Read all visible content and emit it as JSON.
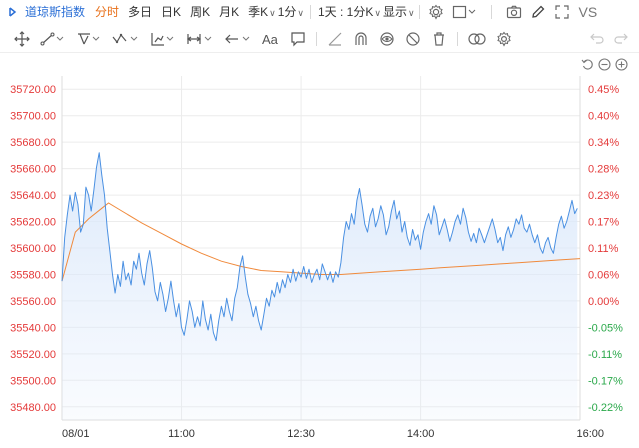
{
  "topbar": {
    "brand": "道琼斯指数",
    "tabs": [
      "分时",
      "多日",
      "日K",
      "周K",
      "月K",
      "季K"
    ],
    "active_tab": "分时",
    "interval": "1分",
    "range": "1天 : 1分K",
    "display": "显示",
    "vs": "VS"
  },
  "drawbar": {
    "text_tool": "Aa"
  },
  "colors": {
    "price_line": "#4a90e2",
    "price_fill": "#dce9fb",
    "avg_line": "#f08a3c",
    "up": "#e43a3a",
    "down": "#2aa84a",
    "grid": "#ececec",
    "active": "#e8701a"
  },
  "chart_data": {
    "type": "line",
    "title": "道琼斯指数",
    "x_ticks": [
      "08/01",
      "11:00",
      "12:30",
      "14:00",
      "16:00"
    ],
    "y_ticks_left": [
      "35720.00",
      "35700.00",
      "35680.00",
      "35660.00",
      "35640.00",
      "35620.00",
      "35600.00",
      "35580.00",
      "35560.00",
      "35540.00",
      "35520.00",
      "35500.00",
      "35480.00"
    ],
    "y_ticks_right": [
      "0.45%",
      "0.40%",
      "0.34%",
      "0.28%",
      "0.23%",
      "0.17%",
      "0.11%",
      "0.06%",
      "0.00%",
      "-0.05%",
      "-0.11%",
      "-0.17%",
      "-0.22%"
    ],
    "ylim": [
      35470,
      35730
    ],
    "prev_close": 35560,
    "x_range": [
      "09:30",
      "16:00"
    ],
    "series": [
      {
        "name": "price",
        "points": [
          [
            "09:30",
            35575
          ],
          [
            "09:32",
            35608
          ],
          [
            "09:34",
            35625
          ],
          [
            "09:36",
            35640
          ],
          [
            "09:38",
            35628
          ],
          [
            "09:40",
            35642
          ],
          [
            "09:42",
            35633
          ],
          [
            "09:44",
            35612
          ],
          [
            "09:46",
            35618
          ],
          [
            "09:48",
            35646
          ],
          [
            "09:50",
            35640
          ],
          [
            "09:52",
            35628
          ],
          [
            "09:54",
            35644
          ],
          [
            "09:56",
            35661
          ],
          [
            "09:58",
            35672
          ],
          [
            "10:00",
            35655
          ],
          [
            "10:02",
            35640
          ],
          [
            "10:04",
            35615
          ],
          [
            "10:06",
            35598
          ],
          [
            "10:08",
            35580
          ],
          [
            "10:10",
            35566
          ],
          [
            "10:12",
            35580
          ],
          [
            "10:14",
            35571
          ],
          [
            "10:16",
            35590
          ],
          [
            "10:18",
            35576
          ],
          [
            "10:20",
            35581
          ],
          [
            "10:22",
            35572
          ],
          [
            "10:24",
            35590
          ],
          [
            "10:26",
            35584
          ],
          [
            "10:28",
            35596
          ],
          [
            "10:30",
            35581
          ],
          [
            "10:32",
            35572
          ],
          [
            "10:34",
            35588
          ],
          [
            "10:36",
            35598
          ],
          [
            "10:38",
            35585
          ],
          [
            "10:40",
            35567
          ],
          [
            "10:42",
            35560
          ],
          [
            "10:44",
            35574
          ],
          [
            "10:46",
            35565
          ],
          [
            "10:48",
            35552
          ],
          [
            "10:50",
            35562
          ],
          [
            "10:52",
            35575
          ],
          [
            "10:54",
            35560
          ],
          [
            "10:56",
            35548
          ],
          [
            "10:58",
            35558
          ],
          [
            "11:00",
            35540
          ],
          [
            "11:02",
            35534
          ],
          [
            "11:04",
            35546
          ],
          [
            "11:06",
            35560
          ],
          [
            "11:08",
            35552
          ],
          [
            "11:10",
            35540
          ],
          [
            "11:12",
            35548
          ],
          [
            "11:14",
            35541
          ],
          [
            "11:16",
            35560
          ],
          [
            "11:18",
            35546
          ],
          [
            "11:20",
            35538
          ],
          [
            "11:22",
            35550
          ],
          [
            "11:24",
            35536
          ],
          [
            "11:26",
            35530
          ],
          [
            "11:28",
            35545
          ],
          [
            "11:30",
            35556
          ],
          [
            "11:32",
            35548
          ],
          [
            "11:34",
            35562
          ],
          [
            "11:36",
            35552
          ],
          [
            "11:38",
            35545
          ],
          [
            "11:40",
            35562
          ],
          [
            "11:42",
            35570
          ],
          [
            "11:44",
            35586
          ],
          [
            "11:46",
            35594
          ],
          [
            "11:48",
            35578
          ],
          [
            "11:50",
            35565
          ],
          [
            "11:52",
            35558
          ],
          [
            "11:54",
            35548
          ],
          [
            "11:56",
            35556
          ],
          [
            "11:58",
            35545
          ],
          [
            "12:00",
            35538
          ],
          [
            "12:02",
            35550
          ],
          [
            "12:04",
            35562
          ],
          [
            "12:06",
            35556
          ],
          [
            "12:08",
            35568
          ],
          [
            "12:10",
            35563
          ],
          [
            "12:12",
            35574
          ],
          [
            "12:14",
            35566
          ],
          [
            "12:16",
            35576
          ],
          [
            "12:18",
            35570
          ],
          [
            "12:20",
            35580
          ],
          [
            "12:22",
            35574
          ],
          [
            "12:24",
            35584
          ],
          [
            "12:26",
            35575
          ],
          [
            "12:28",
            35582
          ],
          [
            "12:30",
            35578
          ],
          [
            "12:32",
            35586
          ],
          [
            "12:34",
            35577
          ],
          [
            "12:36",
            35584
          ],
          [
            "12:38",
            35574
          ],
          [
            "12:40",
            35580
          ],
          [
            "12:42",
            35584
          ],
          [
            "12:44",
            35576
          ],
          [
            "12:46",
            35588
          ],
          [
            "12:48",
            35582
          ],
          [
            "12:50",
            35576
          ],
          [
            "12:52",
            35582
          ],
          [
            "12:54",
            35574
          ],
          [
            "12:56",
            35582
          ],
          [
            "12:58",
            35578
          ],
          [
            "13:00",
            35589
          ],
          [
            "13:02",
            35608
          ],
          [
            "13:04",
            35620
          ],
          [
            "13:06",
            35614
          ],
          [
            "13:08",
            35626
          ],
          [
            "13:10",
            35618
          ],
          [
            "13:12",
            35636
          ],
          [
            "13:14",
            35645
          ],
          [
            "13:16",
            35632
          ],
          [
            "13:18",
            35618
          ],
          [
            "13:20",
            35612
          ],
          [
            "13:22",
            35624
          ],
          [
            "13:24",
            35630
          ],
          [
            "13:26",
            35616
          ],
          [
            "13:28",
            35622
          ],
          [
            "13:30",
            35632
          ],
          [
            "13:32",
            35625
          ],
          [
            "13:34",
            35610
          ],
          [
            "13:36",
            35616
          ],
          [
            "13:38",
            35628
          ],
          [
            "13:40",
            35636
          ],
          [
            "13:42",
            35622
          ],
          [
            "13:44",
            35628
          ],
          [
            "13:46",
            35612
          ],
          [
            "13:48",
            35620
          ],
          [
            "13:50",
            35608
          ],
          [
            "13:52",
            35602
          ],
          [
            "13:54",
            35614
          ],
          [
            "13:56",
            35606
          ],
          [
            "13:58",
            35610
          ],
          [
            "14:00",
            35599
          ],
          [
            "14:02",
            35612
          ],
          [
            "14:04",
            35620
          ],
          [
            "14:06",
            35626
          ],
          [
            "14:08",
            35618
          ],
          [
            "14:10",
            35632
          ],
          [
            "14:12",
            35625
          ],
          [
            "14:14",
            35610
          ],
          [
            "14:16",
            35616
          ],
          [
            "14:18",
            35622
          ],
          [
            "14:20",
            35614
          ],
          [
            "14:22",
            35605
          ],
          [
            "14:24",
            35612
          ],
          [
            "14:26",
            35620
          ],
          [
            "14:28",
            35625
          ],
          [
            "14:30",
            35618
          ],
          [
            "14:32",
            35630
          ],
          [
            "14:34",
            35623
          ],
          [
            "14:36",
            35612
          ],
          [
            "14:38",
            35605
          ],
          [
            "14:40",
            35611
          ],
          [
            "14:42",
            35604
          ],
          [
            "14:44",
            35615
          ],
          [
            "14:46",
            35610
          ],
          [
            "14:48",
            35604
          ],
          [
            "14:50",
            35610
          ],
          [
            "14:52",
            35616
          ],
          [
            "14:54",
            35622
          ],
          [
            "14:56",
            35614
          ],
          [
            "14:58",
            35604
          ],
          [
            "15:00",
            35608
          ],
          [
            "15:02",
            35598
          ],
          [
            "15:04",
            35610
          ],
          [
            "15:06",
            35616
          ],
          [
            "15:08",
            35608
          ],
          [
            "15:10",
            35614
          ],
          [
            "15:12",
            35622
          ],
          [
            "15:14",
            35618
          ],
          [
            "15:16",
            35625
          ],
          [
            "15:18",
            35615
          ],
          [
            "15:20",
            35612
          ],
          [
            "15:22",
            35618
          ],
          [
            "15:24",
            35610
          ],
          [
            "15:26",
            35604
          ],
          [
            "15:28",
            35610
          ],
          [
            "15:30",
            35600
          ],
          [
            "15:32",
            35596
          ],
          [
            "15:34",
            35604
          ],
          [
            "15:36",
            35608
          ],
          [
            "15:38",
            35600
          ],
          [
            "15:40",
            35596
          ],
          [
            "15:42",
            35608
          ],
          [
            "15:44",
            35618
          ],
          [
            "15:46",
            35624
          ],
          [
            "15:48",
            35615
          ],
          [
            "15:50",
            35620
          ],
          [
            "15:52",
            35628
          ],
          [
            "15:54",
            35636
          ],
          [
            "15:56",
            35626
          ],
          [
            "15:58",
            35630
          ]
        ]
      },
      {
        "name": "average",
        "points": [
          [
            "09:30",
            35575
          ],
          [
            "09:40",
            35612
          ],
          [
            "09:50",
            35622
          ],
          [
            "10:00",
            35630
          ],
          [
            "10:05",
            35634
          ],
          [
            "10:15",
            35628
          ],
          [
            "10:30",
            35619
          ],
          [
            "10:45",
            35611
          ],
          [
            "11:00",
            35603
          ],
          [
            "11:15",
            35596
          ],
          [
            "11:30",
            35590
          ],
          [
            "11:45",
            35586
          ],
          [
            "12:00",
            35583
          ],
          [
            "12:15",
            35582
          ],
          [
            "12:30",
            35581
          ],
          [
            "12:45",
            35580
          ],
          [
            "13:00",
            35580
          ],
          [
            "13:15",
            35581
          ],
          [
            "13:30",
            35582
          ],
          [
            "13:45",
            35583
          ],
          [
            "14:00",
            35584
          ],
          [
            "14:15",
            35585
          ],
          [
            "14:30",
            35586
          ],
          [
            "14:45",
            35587
          ],
          [
            "15:00",
            35588
          ],
          [
            "15:15",
            35589
          ],
          [
            "15:30",
            35590
          ],
          [
            "15:45",
            35591
          ],
          [
            "16:00",
            35592
          ]
        ]
      }
    ]
  }
}
